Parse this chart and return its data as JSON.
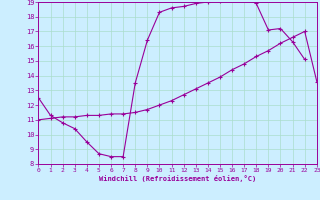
{
  "line1_x": [
    0,
    1,
    2,
    3,
    4,
    5,
    6,
    7,
    8,
    9,
    10,
    11,
    12,
    13,
    14,
    15,
    16,
    17,
    18,
    19,
    20,
    21,
    22
  ],
  "line1_y": [
    12.5,
    11.3,
    10.8,
    10.4,
    9.5,
    8.7,
    8.5,
    8.5,
    13.5,
    16.4,
    18.3,
    18.6,
    18.7,
    18.9,
    19.0,
    19.1,
    19.4,
    19.3,
    18.9,
    17.1,
    17.2,
    16.3,
    15.1
  ],
  "line2_x": [
    0,
    1,
    2,
    3,
    4,
    5,
    6,
    7,
    8,
    9,
    10,
    11,
    12,
    13,
    14,
    15,
    16,
    17,
    18,
    19,
    20,
    21,
    22,
    23
  ],
  "line2_y": [
    11.0,
    11.1,
    11.2,
    11.2,
    11.3,
    11.3,
    11.4,
    11.4,
    11.5,
    11.7,
    12.0,
    12.3,
    12.7,
    13.1,
    13.5,
    13.9,
    14.4,
    14.8,
    15.3,
    15.7,
    16.2,
    16.6,
    17.0,
    13.6
  ],
  "line_color": "#990099",
  "bg_color": "#cceeff",
  "grid_color": "#aaddcc",
  "xlabel": "Windchill (Refroidissement éolien,°C)",
  "xlim": [
    0,
    23
  ],
  "ylim": [
    8,
    19
  ],
  "xticks": [
    0,
    1,
    2,
    3,
    4,
    5,
    6,
    7,
    8,
    9,
    10,
    11,
    12,
    13,
    14,
    15,
    16,
    17,
    18,
    19,
    20,
    21,
    22,
    23
  ],
  "yticks": [
    8,
    9,
    10,
    11,
    12,
    13,
    14,
    15,
    16,
    17,
    18,
    19
  ],
  "marker": "+"
}
